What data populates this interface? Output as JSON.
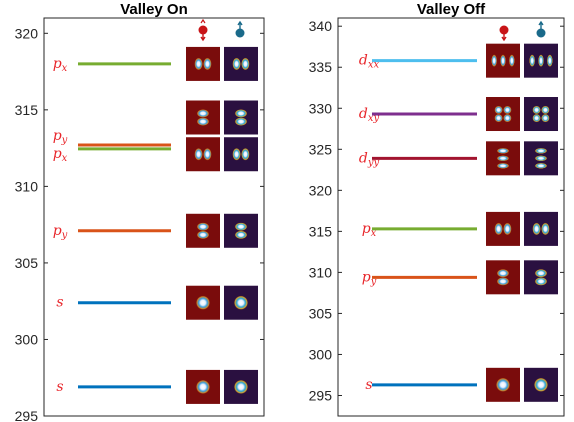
{
  "chart_data": [
    {
      "type": "energy-level",
      "title": "Valley On",
      "ylim": [
        295,
        321
      ],
      "yticks": [
        295,
        300,
        305,
        310,
        315,
        320
      ],
      "grid": false,
      "levels": [
        {
          "energy": 318.0,
          "label": "p",
          "sub": "x",
          "color": "#77ac30",
          "orbital": "px"
        },
        {
          "energy": 312.7,
          "label": "p",
          "sub": "y",
          "color": "#d95319",
          "orbital": "py"
        },
        {
          "energy": 312.45,
          "label": "p",
          "sub": "x",
          "color": "#77ac30",
          "orbital": "px"
        },
        {
          "energy": 307.1,
          "label": "p",
          "sub": "y",
          "color": "#d95319",
          "orbital": "py"
        },
        {
          "energy": 302.4,
          "label": "s",
          "sub": "",
          "color": "#0072bd",
          "orbital": "s"
        },
        {
          "energy": 296.9,
          "label": "s",
          "sub": "",
          "color": "#0072bd",
          "orbital": "s"
        }
      ],
      "label_overrides": [
        {
          "index": 1,
          "label_energy": 313.3
        },
        {
          "index": 2,
          "label_energy": 312.1
        }
      ],
      "thumb_offsets": [
        {
          "index": 1,
          "thumb_energy": 314.5
        },
        {
          "index": 2,
          "thumb_energy": 312.1
        }
      ]
    },
    {
      "type": "energy-level",
      "title": "Valley Off",
      "ylim": [
        292.5,
        341
      ],
      "yticks": [
        295,
        300,
        305,
        310,
        315,
        320,
        325,
        330,
        335,
        340
      ],
      "grid": false,
      "levels": [
        {
          "energy": 335.8,
          "label": "d",
          "sub": "xx",
          "color": "#4dbeee",
          "orbital": "dxx"
        },
        {
          "energy": 329.3,
          "label": "d",
          "sub": "xy",
          "color": "#7e2f8e",
          "orbital": "dxy"
        },
        {
          "energy": 323.9,
          "label": "d",
          "sub": "yy",
          "color": "#a2142f",
          "orbital": "dyy"
        },
        {
          "energy": 315.3,
          "label": "p",
          "sub": "x",
          "color": "#77ac30",
          "orbital": "px"
        },
        {
          "energy": 309.4,
          "label": "p",
          "sub": "y",
          "color": "#d95319",
          "orbital": "py"
        },
        {
          "energy": 296.3,
          "label": "s",
          "sub": "",
          "color": "#0072bd",
          "orbital": "s"
        }
      ]
    }
  ],
  "spin_icons": {
    "up_color": "#c81418",
    "down_color": "#1a6a8a"
  },
  "thumb_colors": {
    "up_bg": "#7a0c0c",
    "down_bg": "#2a1040"
  }
}
